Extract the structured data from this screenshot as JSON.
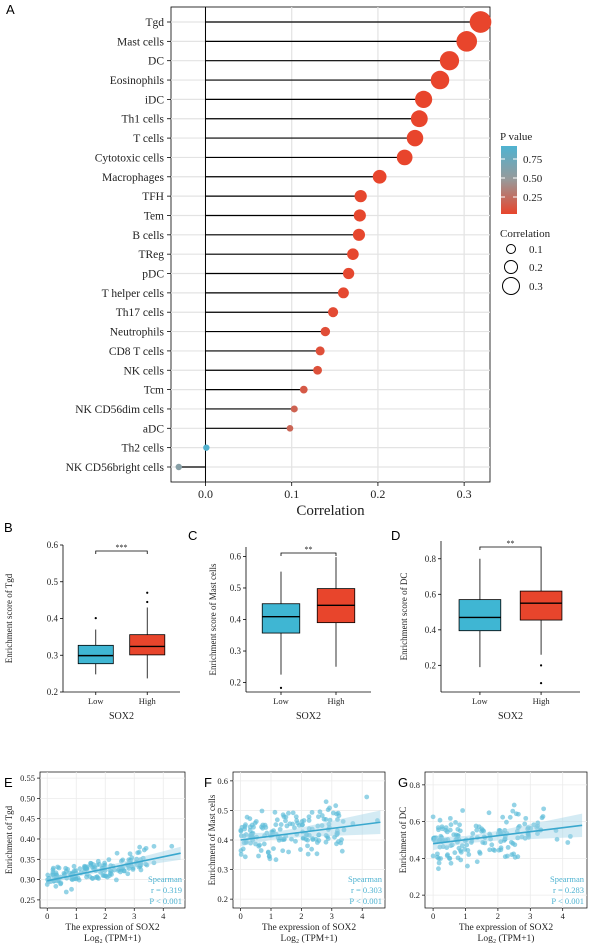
{
  "charts": [
    {
      "panel": "A",
      "type": "lollipop",
      "xlabel": "Correlation",
      "xlim": [
        -0.04,
        0.33
      ],
      "xticks": [
        "0.0",
        "0.1",
        "0.2",
        "0.3"
      ],
      "legend_p_title": "P value",
      "legend_p_ticks": [
        "0.75",
        "0.50",
        "0.25"
      ],
      "legend_size_title": "Correlation",
      "legend_size_ticks": [
        "0.1",
        "0.2",
        "0.3"
      ],
      "categories": [
        "Tgd",
        "Mast cells",
        "DC",
        "Eosinophils",
        "iDC",
        "Th1 cells",
        "T cells",
        "Cytotoxic cells",
        "Macrophages",
        "TFH",
        "Tem",
        "B cells",
        "TReg",
        "pDC",
        "T helper cells",
        "Th17 cells",
        "Neutrophils",
        "CD8 T cells",
        "NK cells",
        "Tcm",
        "NK CD56dim cells",
        "aDC",
        "Th2 cells",
        "NK CD56bright cells"
      ],
      "values": [
        0.319,
        0.303,
        0.283,
        0.272,
        0.253,
        0.248,
        0.243,
        0.231,
        0.202,
        0.18,
        0.179,
        0.178,
        0.171,
        0.166,
        0.16,
        0.148,
        0.139,
        0.133,
        0.13,
        0.114,
        0.103,
        0.098,
        0.001,
        -0.031
      ],
      "pvalues": [
        0.0,
        0.0,
        0.0,
        0.0,
        0.0,
        0.0,
        0.0,
        0.0,
        0.0,
        0.01,
        0.01,
        0.01,
        0.01,
        0.02,
        0.02,
        0.03,
        0.05,
        0.06,
        0.07,
        0.12,
        0.17,
        0.19,
        0.98,
        0.62
      ],
      "colors": {
        "low_p": "#E8452C",
        "mid_p": "#999999",
        "high_p": "#4FB3D1"
      }
    },
    {
      "panel": "B",
      "type": "box",
      "xlabel": "SOX2",
      "ylabel": "Enrichment score of Tgd",
      "ylim": [
        0.2,
        0.6
      ],
      "yticks": [
        "0.2",
        "0.3",
        "0.4",
        "0.5",
        "0.6"
      ],
      "significance": "***",
      "groups": [
        {
          "name": "Low",
          "min": 0.248,
          "q1": 0.277,
          "median": 0.299,
          "q3": 0.327,
          "max": 0.37,
          "outliers": [
            0.401
          ],
          "color": "#3FB6D3"
        },
        {
          "name": "High",
          "min": 0.237,
          "q1": 0.301,
          "median": 0.324,
          "q3": 0.356,
          "max": 0.43,
          "outliers": [
            0.445,
            0.47
          ],
          "color": "#E8452C"
        }
      ]
    },
    {
      "panel": "C",
      "type": "box",
      "xlabel": "SOX2",
      "ylabel": "Enrichment score of Mast cells",
      "ylim": [
        0.17,
        0.63
      ],
      "yticks": [
        "0.2",
        "0.3",
        "0.4",
        "0.5",
        "0.6"
      ],
      "significance": "**",
      "groups": [
        {
          "name": "Low",
          "min": 0.225,
          "q1": 0.357,
          "median": 0.409,
          "q3": 0.45,
          "max": 0.552,
          "outliers": [
            0.183
          ],
          "color": "#3FB6D3"
        },
        {
          "name": "High",
          "min": 0.25,
          "q1": 0.39,
          "median": 0.445,
          "q3": 0.498,
          "max": 0.598,
          "outliers": [],
          "color": "#E8452C"
        }
      ]
    },
    {
      "panel": "D",
      "type": "box",
      "xlabel": "SOX2",
      "ylabel": "Enrichment score of DC",
      "ylim": [
        0.05,
        0.9
      ],
      "yticks": [
        "0.2",
        "0.4",
        "0.6",
        "0.8"
      ],
      "significance": "**",
      "groups": [
        {
          "name": "Low",
          "min": 0.19,
          "q1": 0.395,
          "median": 0.47,
          "q3": 0.57,
          "max": 0.8,
          "outliers": [],
          "color": "#3FB6D3"
        },
        {
          "name": "High",
          "min": 0.26,
          "q1": 0.455,
          "median": 0.55,
          "q3": 0.618,
          "max": 0.85,
          "outliers": [
            0.2,
            0.1
          ],
          "color": "#E8452C"
        }
      ]
    },
    {
      "panel": "E",
      "type": "scatter",
      "xlabel": "The expression of SOX2",
      "xlabel2": "Log₂ (TPM+1)",
      "ylabel": "Enrichment of Tgd",
      "xlim": [
        -0.25,
        4.75
      ],
      "ylim": [
        0.23,
        0.565
      ],
      "xticks": [
        "0",
        "1",
        "2",
        "3",
        "4"
      ],
      "yticks": [
        "0.25",
        "0.30",
        "0.35",
        "0.40",
        "0.45",
        "0.50",
        "0.55"
      ],
      "method": "Spearman",
      "stat_r": "r = 0.319",
      "stat_p": "P < 0.001",
      "fit_line": [
        [
          0,
          0.297
        ],
        [
          4.6,
          0.365
        ]
      ],
      "seed": 11,
      "n": 160,
      "yspread": 0.03
    },
    {
      "panel": "F",
      "type": "scatter",
      "xlabel": "The expression of SOX2",
      "xlabel2": "Log₂ (TPM+1)",
      "ylabel": "Enrichment of Mast cells",
      "xlim": [
        -0.25,
        4.75
      ],
      "ylim": [
        0.17,
        0.63
      ],
      "xticks": [
        "0",
        "1",
        "2",
        "3",
        "4"
      ],
      "yticks": [
        "0.2",
        "0.3",
        "0.4",
        "0.5",
        "0.6"
      ],
      "method": "Spearman",
      "stat_r": "r = 0.303",
      "stat_p": "P < 0.001",
      "fit_line": [
        [
          0,
          0.4
        ],
        [
          4.6,
          0.46
        ]
      ],
      "seed": 23,
      "n": 160,
      "yspread": 0.075
    },
    {
      "panel": "G",
      "type": "scatter",
      "xlabel": "The expression of SOX2",
      "xlabel2": "Log₂ (TPM+1)",
      "ylabel": "Enrichment of DC",
      "xlim": [
        -0.25,
        4.75
      ],
      "ylim": [
        0.13,
        0.87
      ],
      "xticks": [
        "0",
        "1",
        "2",
        "3",
        "4"
      ],
      "yticks": [
        "0.2",
        "0.4",
        "0.6",
        "0.8"
      ],
      "method": "Spearman",
      "stat_r": "r = 0.283",
      "stat_p": "P < 0.001",
      "fit_line": [
        [
          0,
          0.48
        ],
        [
          4.6,
          0.58
        ]
      ],
      "seed": 37,
      "n": 160,
      "yspread": 0.12
    }
  ]
}
